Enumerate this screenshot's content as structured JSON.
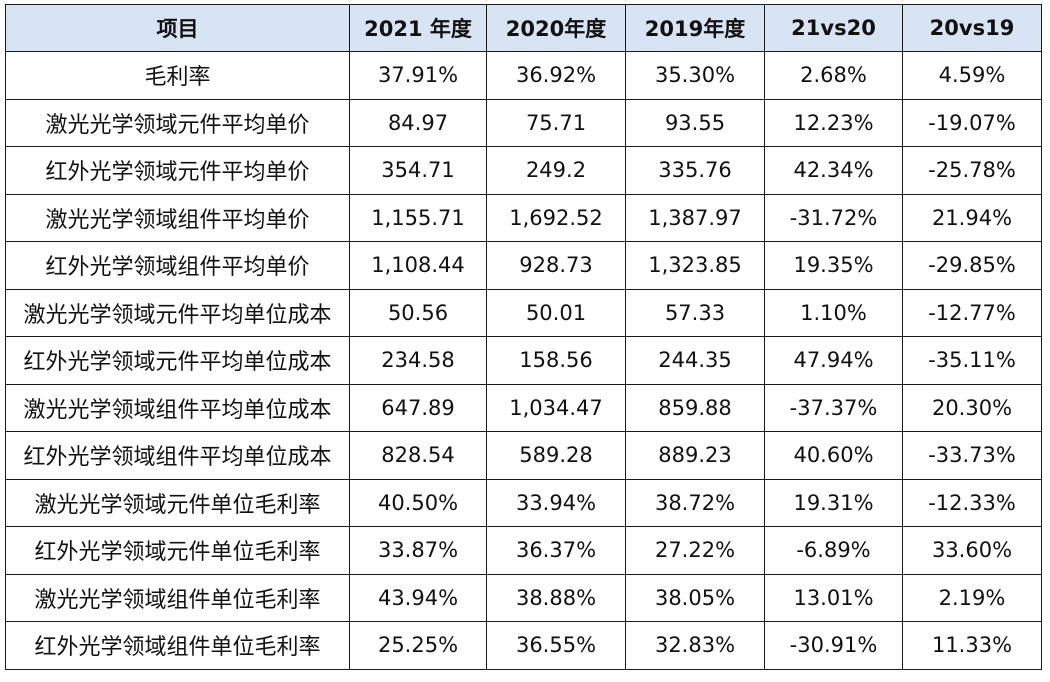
{
  "table": {
    "headers": [
      "项目",
      "2021 年度",
      "2020年度",
      "2019年度",
      "21vs20",
      "20vs19"
    ],
    "rows": [
      [
        "毛利率",
        "37.91%",
        "36.92%",
        "35.30%",
        "2.68%",
        "4.59%"
      ],
      [
        "激光光学领域元件平均单价",
        "84.97",
        "75.71",
        "93.55",
        "12.23%",
        "-19.07%"
      ],
      [
        "红外光学领域元件平均单价",
        "354.71",
        "249.2",
        "335.76",
        "42.34%",
        "-25.78%"
      ],
      [
        "激光光学领域组件平均单价",
        "1,155.71",
        "1,692.52",
        "1,387.97",
        "-31.72%",
        "21.94%"
      ],
      [
        "红外光学领域组件平均单价",
        "1,108.44",
        "928.73",
        "1,323.85",
        "19.35%",
        "-29.85%"
      ],
      [
        "激光光学领域元件平均单位成本",
        "50.56",
        "50.01",
        "57.33",
        "1.10%",
        "-12.77%"
      ],
      [
        "红外光学领域元件平均单位成本",
        "234.58",
        "158.56",
        "244.35",
        "47.94%",
        "-35.11%"
      ],
      [
        "激光光学领域组件平均单位成本",
        "647.89",
        "1,034.47",
        "859.88",
        "-37.37%",
        "20.30%"
      ],
      [
        "红外光学领域组件平均单位成本",
        "828.54",
        "589.28",
        "889.23",
        "40.60%",
        "-33.73%"
      ],
      [
        "激光光学领域元件单位毛利率",
        "40.50%",
        "33.94%",
        "38.72%",
        "19.31%",
        "-12.33%"
      ],
      [
        "红外光学领域元件单位毛利率",
        "33.87%",
        "36.37%",
        "27.22%",
        "-6.89%",
        "33.60%"
      ],
      [
        "激光光学领域组件单位毛利率",
        "43.94%",
        "38.88%",
        "38.05%",
        "13.01%",
        "2.19%"
      ],
      [
        "红外光学领域组件单位毛利率",
        "25.25%",
        "36.55%",
        "32.83%",
        "-30.91%",
        "11.33%"
      ]
    ]
  }
}
